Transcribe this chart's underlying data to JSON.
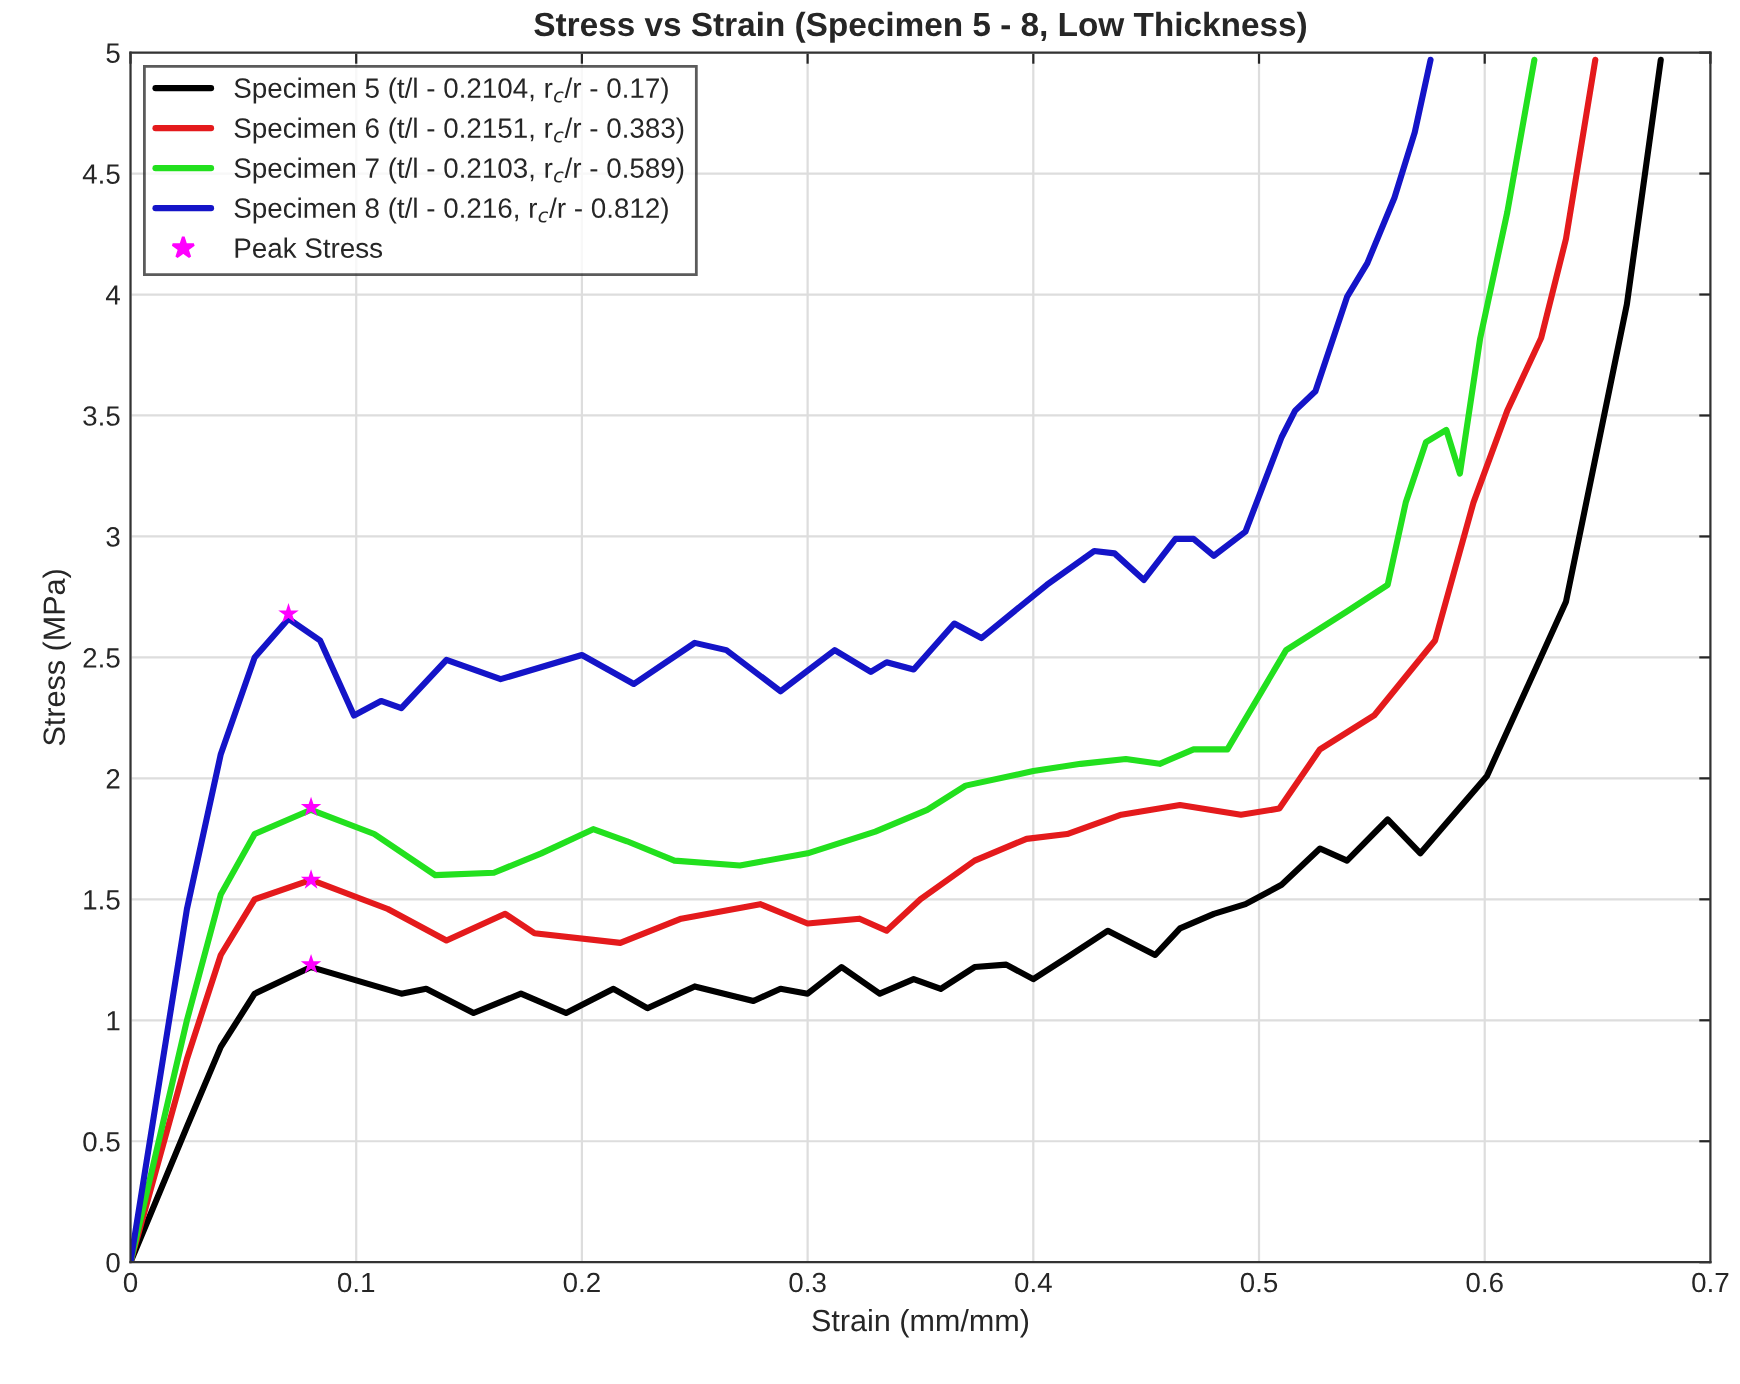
{
  "chart_data": {
    "type": "line",
    "title": "Stress vs Strain (Specimen 5 - 8, Low Thickness)",
    "xlabel": "Strain (mm/mm)",
    "ylabel": "Stress (MPa)",
    "xlim": [
      0,
      0.7
    ],
    "xticks": [
      0,
      0.1,
      0.2,
      0.3,
      0.4,
      0.5,
      0.6,
      0.7
    ],
    "ylim": [
      0,
      5
    ],
    "yticks": [
      0,
      0.5,
      1,
      1.5,
      2,
      2.5,
      3,
      3.5,
      4,
      4.5,
      5
    ],
    "grid": true,
    "legend": "top left",
    "series": [
      {
        "name": "Specimen 5 (t/l - 0.2104, r$_{c}$/r - 0.17)",
        "color": "#000000",
        "x": [
          0,
          0.025,
          0.04,
          0.055,
          0.08,
          0.12,
          0.131,
          0.152,
          0.173,
          0.193,
          0.214,
          0.229,
          0.25,
          0.276,
          0.288,
          0.3,
          0.315,
          0.332,
          0.347,
          0.359,
          0.374,
          0.388,
          0.4,
          0.415,
          0.433,
          0.454,
          0.465,
          0.48,
          0.494,
          0.51,
          0.527,
          0.539,
          0.557,
          0.5715,
          0.601,
          0.636,
          0.663,
          0.678
        ],
        "values": [
          0,
          0.56,
          0.89,
          1.11,
          1.22,
          1.11,
          1.13,
          1.03,
          1.11,
          1.03,
          1.13,
          1.05,
          1.14,
          1.08,
          1.13,
          1.11,
          1.22,
          1.11,
          1.17,
          1.13,
          1.22,
          1.23,
          1.17,
          1.26,
          1.37,
          1.27,
          1.38,
          1.44,
          1.48,
          1.56,
          1.71,
          1.66,
          1.83,
          1.69,
          2.01,
          2.73,
          3.96,
          4.97
        ]
      },
      {
        "name": "Specimen 6 (t/l - 0.2151, r$_{c}$/r - 0.383)",
        "color": "#e41a1c",
        "x": [
          0,
          0.025,
          0.04,
          0.055,
          0.08,
          0.114,
          0.14,
          0.166,
          0.179,
          0.217,
          0.244,
          0.279,
          0.3,
          0.323,
          0.335,
          0.35,
          0.374,
          0.397,
          0.415,
          0.439,
          0.465,
          0.492,
          0.509,
          0.527,
          0.551,
          0.578,
          0.595,
          0.61,
          0.625,
          0.636,
          0.649
        ],
        "values": [
          0,
          0.84,
          1.27,
          1.5,
          1.58,
          1.46,
          1.33,
          1.44,
          1.36,
          1.32,
          1.42,
          1.48,
          1.4,
          1.42,
          1.37,
          1.5,
          1.66,
          1.75,
          1.77,
          1.85,
          1.89,
          1.85,
          1.875,
          2.12,
          2.26,
          2.57,
          3.14,
          3.52,
          3.82,
          4.23,
          4.97
        ]
      },
      {
        "name": "Specimen 7 (t/l - 0.2103, r$_{c}$/r - 0.589)",
        "color": "#22e01e",
        "x": [
          0,
          0.025,
          0.04,
          0.055,
          0.08,
          0.108,
          0.135,
          0.161,
          0.182,
          0.205,
          0.22,
          0.241,
          0.27,
          0.3,
          0.33,
          0.353,
          0.37,
          0.4,
          0.421,
          0.441,
          0.456,
          0.471,
          0.486,
          0.512,
          0.539,
          0.557,
          0.565,
          0.574,
          0.583,
          0.589,
          0.598,
          0.61,
          0.622
        ],
        "values": [
          0,
          1.0,
          1.52,
          1.77,
          1.87,
          1.77,
          1.6,
          1.61,
          1.69,
          1.79,
          1.74,
          1.66,
          1.64,
          1.69,
          1.78,
          1.87,
          1.97,
          2.03,
          2.06,
          2.08,
          2.06,
          2.12,
          2.12,
          2.53,
          2.69,
          2.8,
          3.14,
          3.39,
          3.44,
          3.26,
          3.82,
          4.34,
          4.97
        ]
      },
      {
        "name": "Specimen 8 (t/l - 0.216, r$_{c}$/r - 0.812)",
        "color": "#1414c8",
        "x": [
          0,
          0.025,
          0.04,
          0.055,
          0.07,
          0.084,
          0.099,
          0.111,
          0.12,
          0.14,
          0.164,
          0.2,
          0.223,
          0.25,
          0.264,
          0.288,
          0.312,
          0.328,
          0.335,
          0.347,
          0.365,
          0.377,
          0.406,
          0.427,
          0.436,
          0.449,
          0.463,
          0.471,
          0.48,
          0.494,
          0.51,
          0.516,
          0.525,
          0.539,
          0.548,
          0.56,
          0.569,
          0.576
        ],
        "values": [
          0,
          1.46,
          2.1,
          2.5,
          2.66,
          2.57,
          2.26,
          2.32,
          2.29,
          2.49,
          2.41,
          2.51,
          2.39,
          2.56,
          2.53,
          2.36,
          2.53,
          2.44,
          2.48,
          2.45,
          2.64,
          2.58,
          2.8,
          2.94,
          2.93,
          2.82,
          2.99,
          2.99,
          2.92,
          3.02,
          3.41,
          3.52,
          3.6,
          3.99,
          4.13,
          4.4,
          4.67,
          4.97
        ]
      },
      {
        "name": "Peak Stress",
        "type": "scatter",
        "marker": "star",
        "color": "#ff00ff",
        "x": [
          0.08,
          0.08,
          0.08,
          0.07
        ],
        "values": [
          1.23,
          1.58,
          1.88,
          2.68
        ]
      }
    ]
  }
}
